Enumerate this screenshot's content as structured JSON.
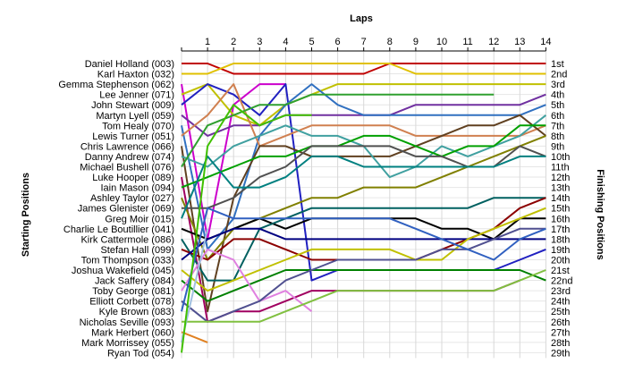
{
  "chart_data": {
    "type": "line",
    "title": "",
    "xlabel": "Laps",
    "ylabel_left": "Starting Positions",
    "ylabel_right": "Finishing Positions",
    "laps": [
      1,
      2,
      3,
      4,
      5,
      6,
      7,
      8,
      9,
      10,
      11,
      12,
      13,
      14
    ],
    "grid": true,
    "drivers": [
      "Daniel Holland (003)",
      "Karl Haxton (032)",
      "Gemma Stephenson (062)",
      "Lee Jenner (071)",
      "John Stewart (009)",
      "Martyn Lyell (059)",
      "Tom Healy (070)",
      "Lewis Turner (051)",
      "Chris Lawrence (066)",
      "Danny Andrew (074)",
      "Michael Bushell (076)",
      "Luke Hooper (089)",
      "Iain Mason (094)",
      "Ashley Taylor (027)",
      "James Glenister (069)",
      "Greg Moir (015)",
      "Charlie Le Boutillier (041)",
      "Kirk Cattermole (086)",
      "Stefan Hall (099)",
      "Tom Thompson (033)",
      "Joshua Wakefield (045)",
      "Jack Saffery (084)",
      "Toby George (081)",
      "Elliott Corbett (078)",
      "Kyle Brown (083)",
      "Nicholas Seville (093)",
      "Mark Herbert (060)",
      "Mark Morrissey (055)",
      "Ryan Tod (054)"
    ],
    "finishing_labels": [
      "1st",
      "2nd",
      "3rd",
      "4th",
      "5th",
      "6th",
      "7th",
      "8th",
      "9th",
      "10th",
      "11th",
      "12th",
      "13th",
      "14th",
      "15th",
      "16th",
      "17th",
      "18th",
      "19th",
      "20th",
      "21st",
      "22nd",
      "23rd",
      "24th",
      "25th",
      "26th",
      "27th",
      "28th",
      "29th"
    ],
    "series": [
      {
        "color": "#c00000",
        "positions": [
          1,
          1,
          2,
          2,
          2,
          2,
          2,
          2,
          1,
          1,
          1,
          1,
          1,
          1,
          1
        ]
      },
      {
        "color": "#e0c000",
        "positions": [
          2,
          2,
          1,
          1,
          1,
          1,
          1,
          1,
          1,
          2,
          2,
          2,
          2,
          2,
          2
        ]
      },
      {
        "color": "#cc00cc",
        "positions": [
          3,
          18,
          5,
          3,
          3
        ]
      },
      {
        "color": "#c0c000",
        "positions": [
          4,
          3,
          6,
          7,
          5,
          4,
          3,
          3,
          3,
          3,
          3,
          3,
          3,
          3,
          3
        ]
      },
      {
        "color": "#2020c0",
        "positions": [
          5,
          3,
          4,
          6,
          3,
          22,
          21,
          21,
          21,
          21,
          21,
          21,
          21,
          20,
          19
        ]
      },
      {
        "color": "#7030a0",
        "positions": [
          6,
          8,
          7,
          7,
          6,
          6,
          6,
          6,
          6,
          5,
          5,
          5,
          5,
          5,
          4
        ]
      },
      {
        "color": "#3070c0",
        "positions": [
          7,
          19,
          16,
          8,
          5,
          3,
          5,
          6,
          6,
          6,
          6,
          6,
          6,
          6,
          5
        ]
      },
      {
        "color": "#d08050",
        "positions": [
          8,
          6,
          3,
          9,
          8,
          7,
          7,
          7,
          7,
          8,
          8,
          8,
          8,
          8,
          7
        ]
      },
      {
        "color": "#604020",
        "positions": [
          9,
          25,
          14,
          9,
          9,
          10,
          10,
          10,
          10,
          9,
          8,
          7,
          7,
          6,
          8
        ]
      },
      {
        "color": "#40a0a0",
        "positions": [
          10,
          11,
          9,
          8,
          7,
          8,
          8,
          9,
          12,
          11,
          9,
          10,
          9,
          8,
          6
        ]
      },
      {
        "color": "#30a030",
        "positions": [
          11,
          7,
          6,
          5,
          5,
          4,
          4,
          4,
          4,
          4,
          4,
          4,
          4
        ]
      },
      {
        "color": "#a00060",
        "positions": [
          12,
          26,
          25,
          25,
          24,
          23,
          23,
          23,
          23,
          23,
          23,
          23,
          23,
          22
        ]
      },
      {
        "color": "#00a000",
        "positions": [
          13,
          12,
          11,
          10,
          10,
          9,
          9,
          8,
          8,
          9,
          10,
          9,
          9,
          7,
          7
        ]
      },
      {
        "color": "#808000",
        "positions": [
          14,
          20,
          17,
          16,
          15,
          14,
          14,
          13,
          13,
          13,
          12,
          11,
          10,
          9,
          8
        ]
      },
      {
        "color": "#505050",
        "positions": [
          15,
          15,
          14,
          12,
          11,
          9,
          9,
          9,
          9,
          10,
          10,
          11,
          11,
          9,
          10
        ]
      },
      {
        "color": "#008080",
        "positions": [
          16,
          10,
          13,
          13,
          12,
          10,
          10,
          11,
          11,
          11,
          11,
          11,
          11,
          10,
          10
        ]
      },
      {
        "color": "#000000",
        "positions": [
          17,
          18,
          17,
          16,
          17,
          16,
          16,
          16,
          16,
          16,
          17,
          17,
          18,
          16,
          16
        ]
      },
      {
        "color": "#006060",
        "positions": [
          18,
          22,
          22,
          17,
          16,
          15,
          15,
          15,
          15,
          15,
          15,
          15,
          14,
          14,
          14
        ]
      },
      {
        "color": "#8b0000",
        "positions": [
          19,
          20,
          18,
          18,
          19,
          20,
          20,
          20,
          20,
          20,
          19,
          18,
          17,
          15,
          14
        ]
      },
      {
        "color": "#000080",
        "positions": [
          20,
          18,
          17,
          17,
          18,
          18,
          18,
          18,
          18,
          18,
          18,
          18,
          18,
          18,
          18
        ]
      },
      {
        "color": "#c0c000",
        "positions": [
          21,
          23,
          22,
          21,
          20,
          19,
          19,
          19,
          19,
          20,
          20,
          18,
          17,
          16,
          15
        ]
      },
      {
        "color": "#008000",
        "positions": [
          22,
          24,
          23,
          22,
          21,
          21,
          21,
          21,
          21,
          21,
          21,
          21,
          21,
          21,
          22
        ]
      },
      {
        "color": "#e080e0",
        "positions": [
          23,
          19,
          20,
          24,
          23,
          25
        ]
      },
      {
        "color": "#505090",
        "positions": [
          24,
          26,
          25,
          24,
          22,
          21,
          20,
          20,
          20,
          20,
          19,
          19,
          18,
          17,
          17
        ]
      },
      {
        "color": "#3060c0",
        "positions": [
          25,
          15,
          16,
          16,
          16,
          16,
          16,
          16,
          16,
          17,
          18,
          19,
          20,
          18,
          17
        ]
      },
      {
        "color": "#80c040",
        "positions": [
          26,
          26,
          26,
          26,
          25,
          24,
          23,
          23,
          23,
          23,
          23,
          23,
          23,
          22,
          21
        ]
      },
      {
        "color": "#e08020",
        "positions": [
          27,
          28
        ]
      },
      {
        "color": "#a0c0e0",
        "positions": [
          28,
          17
        ]
      },
      {
        "color": "#40c000",
        "positions": [
          29,
          9,
          5,
          7,
          6,
          6
        ]
      }
    ]
  }
}
